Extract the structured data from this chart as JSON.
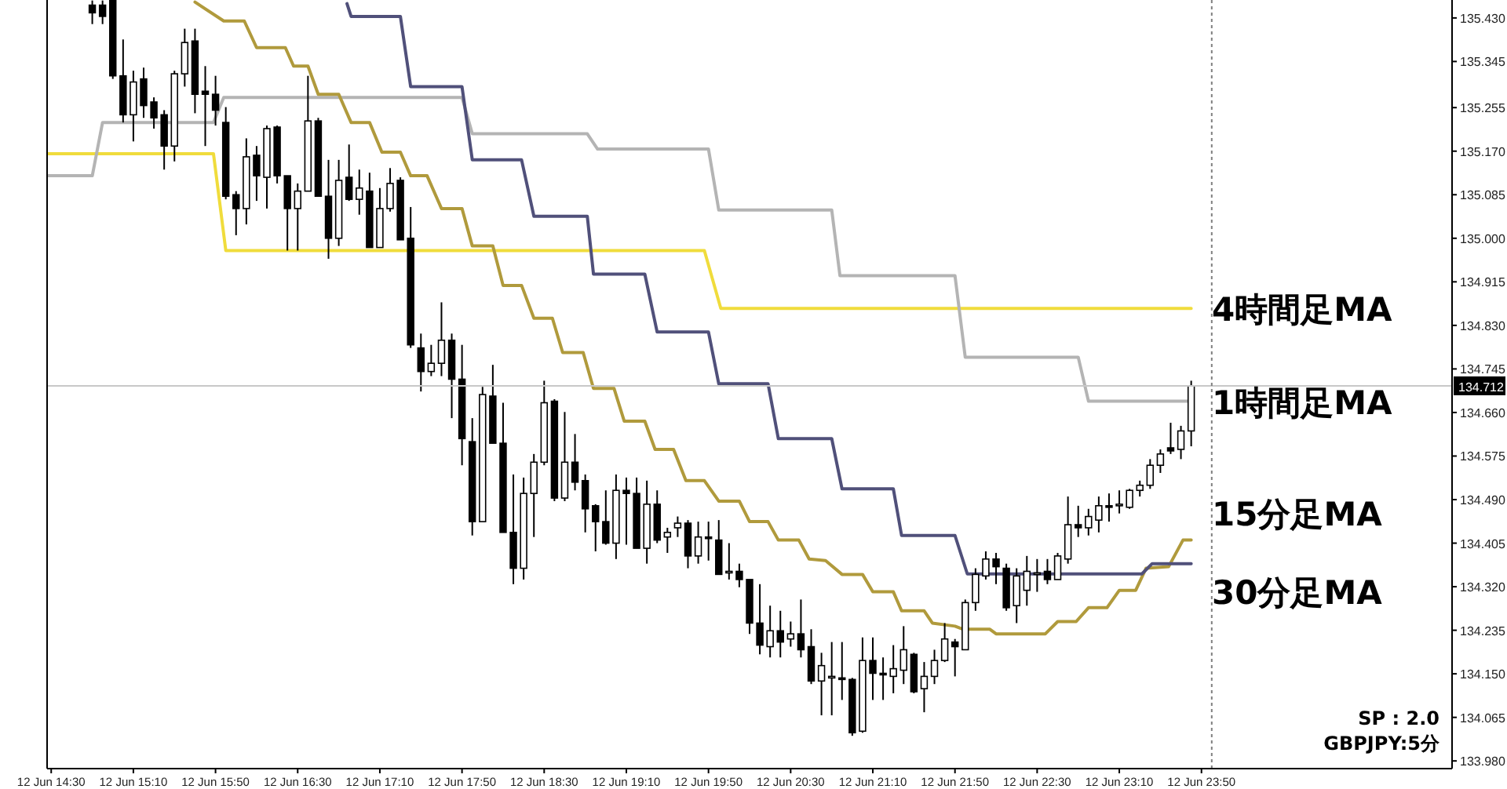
{
  "chart_data": {
    "type": "candlestick",
    "x": [
      "--06-12T14:50",
      "--06-12T14:55",
      "--06-12T15:00",
      "--06-12T15:05",
      "--06-12T15:10",
      "--06-12T15:15",
      "--06-12T15:20",
      "--06-12T15:25",
      "--06-12T15:30",
      "--06-12T15:35",
      "--06-12T15:40",
      "--06-12T15:45",
      "--06-12T15:50",
      "--06-12T15:55",
      "--06-12T16:00",
      "--06-12T16:05",
      "--06-12T16:10",
      "--06-12T16:15",
      "--06-12T16:20",
      "--06-12T16:25",
      "--06-12T16:30",
      "--06-12T16:35",
      "--06-12T16:40",
      "--06-12T16:45",
      "--06-12T16:50",
      "--06-12T16:55",
      "--06-12T17:00",
      "--06-12T17:05",
      "--06-12T17:10",
      "--06-12T17:15",
      "--06-12T17:20",
      "--06-12T17:25",
      "--06-12T17:30",
      "--06-12T17:35",
      "--06-12T17:40",
      "--06-12T17:45",
      "--06-12T17:50",
      "--06-12T17:55",
      "--06-12T18:00",
      "--06-12T18:05",
      "--06-12T18:10",
      "--06-12T18:15",
      "--06-12T18:20",
      "--06-12T18:25",
      "--06-12T18:30",
      "--06-12T18:35",
      "--06-12T18:40",
      "--06-12T18:45",
      "--06-12T18:50",
      "--06-12T18:55",
      "--06-12T19:00",
      "--06-12T19:05",
      "--06-12T19:10",
      "--06-12T19:15",
      "--06-12T19:20",
      "--06-12T19:25",
      "--06-12T19:30",
      "--06-12T19:35",
      "--06-12T19:40",
      "--06-12T19:45",
      "--06-12T19:50",
      "--06-12T19:55",
      "--06-12T20:00",
      "--06-12T20:05",
      "--06-12T20:10",
      "--06-12T20:15",
      "--06-12T20:20",
      "--06-12T20:25",
      "--06-12T20:30",
      "--06-12T20:35",
      "--06-12T20:40",
      "--06-12T20:45",
      "--06-12T20:50",
      "--06-12T20:55",
      "--06-12T21:00",
      "--06-12T21:05",
      "--06-12T21:10",
      "--06-12T21:15",
      "--06-12T21:20",
      "--06-12T21:25",
      "--06-12T21:30",
      "--06-12T21:35",
      "--06-12T21:40",
      "--06-12T21:45",
      "--06-12T21:50",
      "--06-12T21:55",
      "--06-12T22:00",
      "--06-12T22:05",
      "--06-12T22:10",
      "--06-12T22:15",
      "--06-12T22:20",
      "--06-12T22:25",
      "--06-12T22:30",
      "--06-12T22:35",
      "--06-12T22:40",
      "--06-12T22:45",
      "--06-12T22:50",
      "--06-12T22:55",
      "--06-12T23:00",
      "--06-12T23:05",
      "--06-12T23:10",
      "--06-12T23:15",
      "--06-12T23:20",
      "--06-12T23:25",
      "--06-12T23:30",
      "--06-12T23:35",
      "--06-12T23:40",
      "--06-12T23:45"
    ],
    "ohlc": [
      [
        135.455,
        135.464,
        135.418,
        135.44
      ],
      [
        135.455,
        135.464,
        135.418,
        135.433
      ],
      [
        135.464,
        135.464,
        135.311,
        135.317
      ],
      [
        135.317,
        135.388,
        135.226,
        135.241
      ],
      [
        135.241,
        135.327,
        135.189,
        135.305
      ],
      [
        135.311,
        135.333,
        135.235,
        135.259
      ],
      [
        135.266,
        135.275,
        135.214,
        135.235
      ],
      [
        135.241,
        135.25,
        135.134,
        135.18
      ],
      [
        135.18,
        135.327,
        135.15,
        135.321
      ],
      [
        135.321,
        135.409,
        135.296,
        135.382
      ],
      [
        135.385,
        135.409,
        135.244,
        135.281
      ],
      [
        135.287,
        135.336,
        135.18,
        135.281
      ],
      [
        135.281,
        135.317,
        135.22,
        135.25
      ],
      [
        135.226,
        135.256,
        135.076,
        135.082
      ],
      [
        135.085,
        135.092,
        135.006,
        135.058
      ],
      [
        135.058,
        135.195,
        135.027,
        135.159
      ],
      [
        135.162,
        135.18,
        135.073,
        135.122
      ],
      [
        135.119,
        135.22,
        135.058,
        135.214
      ],
      [
        135.217,
        135.22,
        135.107,
        135.122
      ],
      [
        135.122,
        135.122,
        134.976,
        135.058
      ],
      [
        135.058,
        135.107,
        134.976,
        135.092
      ],
      [
        135.092,
        135.317,
        135.092,
        135.229
      ],
      [
        135.229,
        135.235,
        135.082,
        135.082
      ],
      [
        135.082,
        135.153,
        134.96,
        135.0
      ],
      [
        135.0,
        135.153,
        134.985,
        135.113
      ],
      [
        135.119,
        135.183,
        135.073,
        135.076
      ],
      [
        135.076,
        135.134,
        135.046,
        135.098
      ],
      [
        135.092,
        135.128,
        134.982,
        134.982
      ],
      [
        134.982,
        135.098,
        134.982,
        135.058
      ],
      [
        135.058,
        135.137,
        135.052,
        135.107
      ],
      [
        135.113,
        135.119,
        134.997,
        134.997
      ],
      [
        135.0,
        135.061,
        134.786,
        134.792
      ],
      [
        134.786,
        134.814,
        134.701,
        134.74
      ],
      [
        134.74,
        134.792,
        134.731,
        134.756
      ],
      [
        134.756,
        134.875,
        134.731,
        134.801
      ],
      [
        134.801,
        134.814,
        134.649,
        134.725
      ],
      [
        134.725,
        134.792,
        134.557,
        134.609
      ],
      [
        134.603,
        134.649,
        134.42,
        134.447
      ],
      [
        134.447,
        134.71,
        134.447,
        134.695
      ],
      [
        134.692,
        134.753,
        134.6,
        134.6
      ],
      [
        134.6,
        134.679,
        134.426,
        134.426
      ],
      [
        134.426,
        134.539,
        134.325,
        134.356
      ],
      [
        134.356,
        134.533,
        134.334,
        134.502
      ],
      [
        134.502,
        134.579,
        134.417,
        134.563
      ],
      [
        134.563,
        134.722,
        134.557,
        134.679
      ],
      [
        134.682,
        134.686,
        134.487,
        134.493
      ],
      [
        134.493,
        134.661,
        134.487,
        134.563
      ],
      [
        134.563,
        134.618,
        134.508,
        134.524
      ],
      [
        134.527,
        134.539,
        134.426,
        134.472
      ],
      [
        134.478,
        134.481,
        134.389,
        134.447
      ],
      [
        134.447,
        134.508,
        134.402,
        134.405
      ],
      [
        134.405,
        134.539,
        134.374,
        134.508
      ],
      [
        134.508,
        134.533,
        134.402,
        134.502
      ],
      [
        134.502,
        134.533,
        134.395,
        134.395
      ],
      [
        134.395,
        134.527,
        134.365,
        134.481
      ],
      [
        134.481,
        134.508,
        134.405,
        134.411
      ],
      [
        134.417,
        134.435,
        134.386,
        134.426
      ],
      [
        134.435,
        134.457,
        134.417,
        134.444
      ],
      [
        134.444,
        134.45,
        134.356,
        134.38
      ],
      [
        134.38,
        134.447,
        134.365,
        134.417
      ],
      [
        134.417,
        134.447,
        134.371,
        134.414
      ],
      [
        134.411,
        134.45,
        134.344,
        134.344
      ],
      [
        134.347,
        134.405,
        134.334,
        134.35
      ],
      [
        134.35,
        134.365,
        134.319,
        134.334
      ],
      [
        134.334,
        134.334,
        134.228,
        134.249
      ],
      [
        134.249,
        134.325,
        134.188,
        134.206
      ],
      [
        134.203,
        134.283,
        134.182,
        134.234
      ],
      [
        134.234,
        134.273,
        134.182,
        134.212
      ],
      [
        134.218,
        134.252,
        134.203,
        134.228
      ],
      [
        134.228,
        134.295,
        134.182,
        134.197
      ],
      [
        134.203,
        134.237,
        134.13,
        134.136
      ],
      [
        134.136,
        134.191,
        134.069,
        134.166
      ],
      [
        134.142,
        134.212,
        134.069,
        134.145
      ],
      [
        134.142,
        134.212,
        134.099,
        134.139
      ],
      [
        134.139,
        134.142,
        134.029,
        134.035
      ],
      [
        134.038,
        134.221,
        134.035,
        134.176
      ],
      [
        134.176,
        134.221,
        134.099,
        134.151
      ],
      [
        134.151,
        134.182,
        134.099,
        134.148
      ],
      [
        134.145,
        134.206,
        134.112,
        134.16
      ],
      [
        134.157,
        134.243,
        134.13,
        134.197
      ],
      [
        134.188,
        134.191,
        134.112,
        134.115
      ],
      [
        134.121,
        134.173,
        134.075,
        134.145
      ],
      [
        134.145,
        134.197,
        134.13,
        134.176
      ],
      [
        134.176,
        134.249,
        134.173,
        134.218
      ],
      [
        134.212,
        134.218,
        134.145,
        134.203
      ],
      [
        134.197,
        134.295,
        134.197,
        134.289
      ],
      [
        134.289,
        134.356,
        134.273,
        134.344
      ],
      [
        134.341,
        134.389,
        134.334,
        134.374
      ],
      [
        134.374,
        134.386,
        134.325,
        134.359
      ],
      [
        134.356,
        134.365,
        134.273,
        134.279
      ],
      [
        134.283,
        134.356,
        134.249,
        134.341
      ],
      [
        134.313,
        134.38,
        134.283,
        134.35
      ],
      [
        134.344,
        134.374,
        134.31,
        134.347
      ],
      [
        134.35,
        134.374,
        134.325,
        134.334
      ],
      [
        134.334,
        134.386,
        134.334,
        134.38
      ],
      [
        134.374,
        134.496,
        134.365,
        134.441
      ],
      [
        134.441,
        134.478,
        134.417,
        134.435
      ],
      [
        134.435,
        134.472,
        134.42,
        134.457
      ],
      [
        134.45,
        134.496,
        134.426,
        134.478
      ],
      [
        134.478,
        134.502,
        134.447,
        134.475
      ],
      [
        134.478,
        134.508,
        134.463,
        134.481
      ],
      [
        134.475,
        134.511,
        134.472,
        134.508
      ],
      [
        134.508,
        134.527,
        134.496,
        134.518
      ],
      [
        134.518,
        134.569,
        134.511,
        134.557
      ],
      [
        134.557,
        134.588,
        134.542,
        134.579
      ],
      [
        134.591,
        134.64,
        134.579,
        134.585
      ],
      [
        134.588,
        134.634,
        134.569,
        134.624
      ],
      [
        134.624,
        134.722,
        134.594,
        134.712
      ]
    ],
    "series": [
      {
        "name": "4時間足MA",
        "type": "line",
        "color": "#f0dc3c",
        "x": [
          "--06-12T14:28",
          "--06-12T15:49",
          "--06-12T15:55",
          "--06-12T19:48",
          "--06-12T19:56",
          "--06-12T23:45"
        ],
        "values": [
          135.165,
          135.165,
          134.976,
          134.976,
          134.863,
          134.863
        ]
      },
      {
        "name": "1時間足MA",
        "type": "line",
        "color": "#b4b4b4",
        "x": [
          "--06-12T14:28",
          "--06-12T14:50",
          "--06-12T14:55",
          "--06-12T15:49",
          "--06-12T15:54",
          "--06-12T17:50",
          "--06-12T17:55",
          "--06-12T18:51",
          "--06-12T18:56",
          "--06-12T19:50",
          "--06-12T19:55",
          "--06-12T20:50",
          "--06-12T20:54",
          "--06-12T21:50",
          "--06-12T21:55",
          "--06-12T22:50",
          "--06-12T22:55",
          "--06-12T23:45"
        ],
        "values": [
          135.122,
          135.122,
          135.226,
          135.226,
          135.275,
          135.275,
          135.204,
          135.204,
          135.174,
          135.174,
          135.055,
          135.055,
          134.927,
          134.927,
          134.768,
          134.768,
          134.682,
          134.682
        ]
      },
      {
        "name": "15分足MA",
        "type": "line",
        "color": "#b09a3c",
        "x": [
          "--06-12T15:40",
          "--06-12T15:54",
          "--06-12T16:04",
          "--06-12T16:10",
          "--06-12T16:24",
          "--06-12T16:28",
          "--06-12T16:35",
          "--06-12T16:40",
          "--06-12T16:50",
          "--06-12T16:56",
          "--06-12T17:05",
          "--06-12T17:11",
          "--06-12T17:20",
          "--06-12T17:25",
          "--06-12T17:33",
          "--06-12T17:40",
          "--06-12T17:50",
          "--06-12T17:55",
          "--06-12T18:05",
          "--06-12T18:10",
          "--06-12T18:19",
          "--06-12T18:25",
          "--06-12T18:34",
          "--06-12T18:39",
          "--06-12T18:49",
          "--06-12T18:54",
          "--06-12T19:04",
          "--06-12T19:09",
          "--06-12T19:19",
          "--06-12T19:24",
          "--06-12T19:33",
          "--06-12T19:39",
          "--06-12T19:48",
          "--06-12T19:55",
          "--06-12T20:05",
          "--06-12T20:10",
          "--06-12T20:19",
          "--06-12T20:24",
          "--06-12T20:34",
          "--06-12T20:39",
          "--06-12T20:47",
          "--06-12T20:55",
          "--06-12T21:05",
          "--06-12T21:10",
          "--06-12T21:20",
          "--06-12T21:24",
          "--06-12T21:35",
          "--06-12T21:39",
          "--06-12T21:50",
          "--06-12T21:54",
          "--06-12T22:07",
          "--06-12T22:10",
          "--06-12T22:34",
          "--06-12T22:40",
          "--06-12T22:49",
          "--06-12T22:55",
          "--06-12T23:04",
          "--06-12T23:10",
          "--06-12T23:18",
          "--06-12T23:23",
          "--06-12T23:34",
          "--06-12T23:41",
          "--06-12T23:45"
        ],
        "values": [
          135.461,
          135.424,
          135.424,
          135.372,
          135.372,
          135.336,
          135.336,
          135.281,
          135.281,
          135.226,
          135.226,
          135.168,
          135.168,
          135.122,
          135.122,
          135.058,
          135.058,
          134.985,
          134.985,
          134.908,
          134.908,
          134.844,
          134.844,
          134.777,
          134.777,
          134.707,
          134.707,
          134.643,
          134.643,
          134.588,
          134.588,
          134.527,
          134.527,
          134.487,
          134.487,
          134.447,
          134.447,
          134.411,
          134.411,
          134.374,
          134.371,
          134.344,
          134.344,
          134.31,
          134.31,
          134.273,
          134.273,
          134.249,
          134.243,
          134.237,
          134.237,
          134.228,
          134.228,
          134.252,
          134.252,
          134.279,
          134.279,
          134.313,
          134.313,
          134.356,
          134.359,
          134.411,
          134.411
        ]
      },
      {
        "name": "30分足MA",
        "type": "line",
        "color": "#50507a",
        "x": [
          "--06-12T16:54",
          "--06-12T16:56",
          "--06-12T17:20",
          "--06-12T17:25",
          "--06-12T17:50",
          "--06-12T17:55",
          "--06-12T18:19",
          "--06-12T18:25",
          "--06-12T18:51",
          "--06-12T18:54",
          "--06-12T19:19",
          "--06-12T19:25",
          "--06-12T19:50",
          "--06-12T19:55",
          "--06-12T20:19",
          "--06-12T20:24",
          "--06-12T20:50",
          "--06-12T20:55",
          "--06-12T21:20",
          "--06-12T21:24",
          "--06-12T21:50",
          "--06-12T21:56",
          "--06-12T23:21",
          "--06-12T23:26",
          "--06-12T23:45"
        ],
        "values": [
          135.458,
          135.433,
          135.433,
          135.296,
          135.296,
          135.153,
          135.153,
          135.043,
          135.043,
          134.93,
          134.93,
          134.817,
          134.817,
          134.716,
          134.716,
          134.609,
          134.609,
          134.511,
          134.511,
          134.42,
          134.42,
          134.345,
          134.345,
          134.365,
          134.365
        ]
      }
    ],
    "xlim": [
      "--06-12T14:28",
      "--06-13T01:52"
    ],
    "ylim": [
      133.965,
      135.465
    ],
    "xticks": [
      {
        "value": "--06-12T14:30",
        "label": "12 Jun 14:30"
      },
      {
        "value": "--06-12T15:10",
        "label": "12 Jun 15:10"
      },
      {
        "value": "--06-12T15:50",
        "label": "12 Jun 15:50"
      },
      {
        "value": "--06-12T16:30",
        "label": "12 Jun 16:30"
      },
      {
        "value": "--06-12T17:10",
        "label": "12 Jun 17:10"
      },
      {
        "value": "--06-12T17:50",
        "label": "12 Jun 17:50"
      },
      {
        "value": "--06-12T18:30",
        "label": "12 Jun 18:30"
      },
      {
        "value": "--06-12T19:10",
        "label": "12 Jun 19:10"
      },
      {
        "value": "--06-12T19:50",
        "label": "12 Jun 19:50"
      },
      {
        "value": "--06-12T20:30",
        "label": "12 Jun 20:30"
      },
      {
        "value": "--06-12T21:10",
        "label": "12 Jun 21:10"
      },
      {
        "value": "--06-12T21:50",
        "label": "12 Jun 21:50"
      },
      {
        "value": "--06-12T22:30",
        "label": "12 Jun 22:30"
      },
      {
        "value": "--06-12T23:10",
        "label": "12 Jun 23:10"
      },
      {
        "value": "--06-12T23:50",
        "label": "12 Jun 23:50"
      }
    ],
    "yticks": [
      {
        "value": 135.43,
        "label": "135.430"
      },
      {
        "value": 135.345,
        "label": "135.345"
      },
      {
        "value": 135.255,
        "label": "135.255"
      },
      {
        "value": 135.17,
        "label": "135.170"
      },
      {
        "value": 135.085,
        "label": "135.085"
      },
      {
        "value": 135.0,
        "label": "135.000"
      },
      {
        "value": 134.915,
        "label": "134.915"
      },
      {
        "value": 134.83,
        "label": "134.830"
      },
      {
        "value": 134.745,
        "label": "134.745"
      },
      {
        "value": 134.66,
        "label": "134.660"
      },
      {
        "value": 134.575,
        "label": "134.575"
      },
      {
        "value": 134.49,
        "label": "134.490"
      },
      {
        "value": 134.405,
        "label": "134.405"
      },
      {
        "value": 134.32,
        "label": "134.320"
      },
      {
        "value": 134.235,
        "label": "134.235"
      },
      {
        "value": 134.15,
        "label": "134.150"
      },
      {
        "value": 134.065,
        "label": "134.065"
      },
      {
        "value": 133.98,
        "label": "133.980"
      }
    ],
    "ref_lines": [
      {
        "axis": "y",
        "value": 134.712,
        "label": "134.712",
        "color": "#c8c8c8",
        "line_style": "solid"
      },
      {
        "axis": "x",
        "value": "--06-12T23:55",
        "color": "#808080",
        "line_style": "dotted"
      }
    ],
    "annotations": [
      "SP : 2.0",
      "GBPJPY:5分"
    ]
  }
}
